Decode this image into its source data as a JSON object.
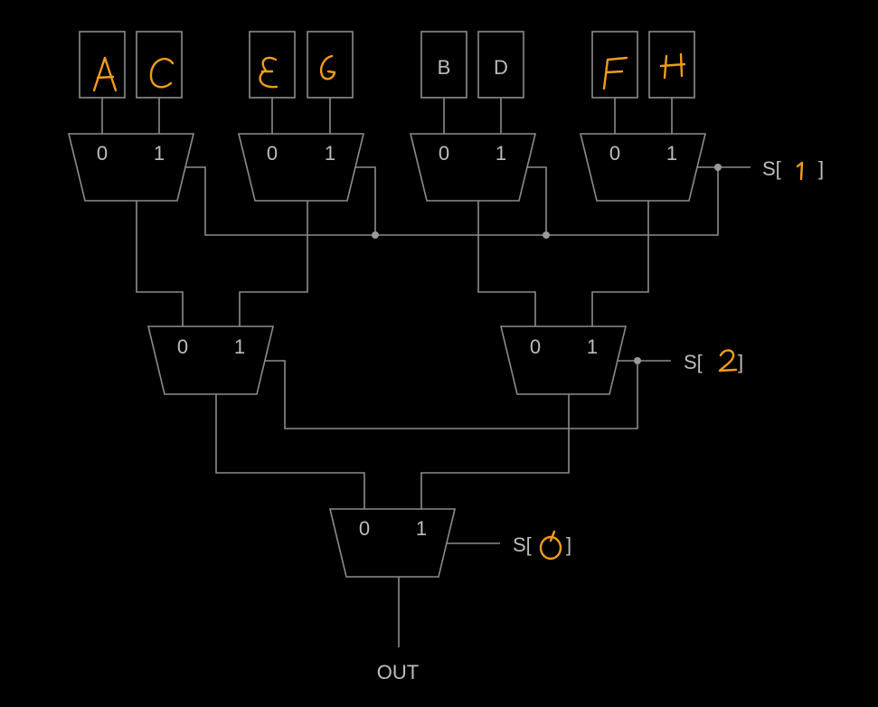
{
  "inputs": [
    "A",
    "C",
    "E",
    "G",
    "B",
    "D",
    "F",
    "H"
  ],
  "mux_port_labels": [
    "0",
    "1"
  ],
  "select_prefix": "S[",
  "select_suffix": "]",
  "select_values": {
    "s1": "1",
    "s2": "2",
    "s0": "0"
  },
  "output_label": "OUT",
  "colors": {
    "background": "#000000",
    "wire": "#8c8c8c",
    "text": "#bdbdbd",
    "handwriting": "#f29d19"
  }
}
